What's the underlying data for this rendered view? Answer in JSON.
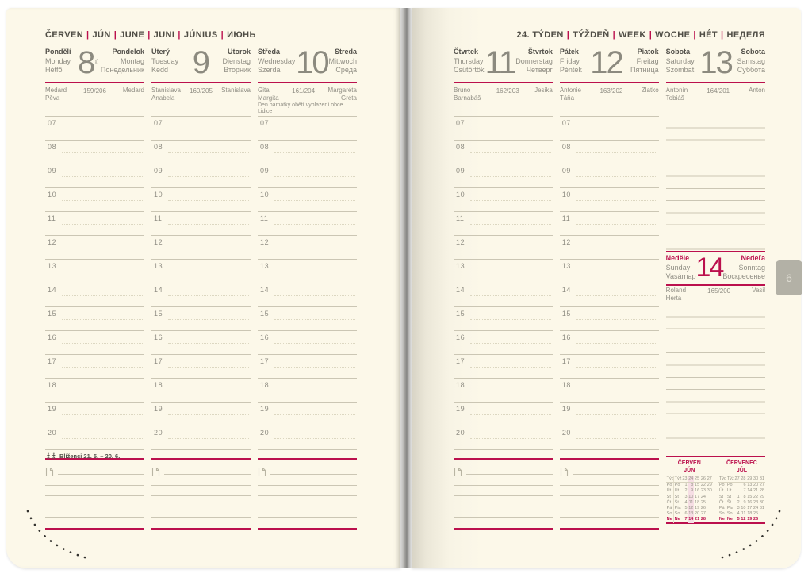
{
  "colors": {
    "accent": "#bb104d",
    "paper": "#fcf8e9",
    "line_gray": "#cbc6b4",
    "tab_gray": "#b3b1a6"
  },
  "icons": {
    "moon_phase": "☾",
    "gemini": "gemini-twins-pictogram",
    "note": "page-with-folded-corner"
  },
  "month_header_items": [
    "ČERVEN",
    "JÚN",
    "JUNE",
    "JUNI",
    "JÚNIUS",
    "ИЮНЬ"
  ],
  "week_header_items": [
    "24. TÝDEN",
    "TÝŽDEŇ",
    "WEEK",
    "WOCHE",
    "HÉT",
    "НЕДЕЛЯ"
  ],
  "hours": [
    "07",
    "08",
    "09",
    "10",
    "11",
    "12",
    "13",
    "14",
    "15",
    "16",
    "17",
    "18",
    "19",
    "20"
  ],
  "zodiac": {
    "label": "Blíženci 21. 5. – 20. 6."
  },
  "tab_label": "6",
  "days_left": [
    {
      "number": "8",
      "moon": "☾",
      "names_left": [
        "Pondělí",
        "Monday",
        "Hétfő"
      ],
      "names_right": [
        "Pondelok",
        "Montag",
        "Понедельник"
      ],
      "nameday_left": [
        "Medard",
        "Pěva"
      ],
      "day_of_year": "159/206",
      "nameday_right": [
        "Medard"
      ]
    },
    {
      "number": "9",
      "names_left": [
        "Úterý",
        "Tuesday",
        "Kedd"
      ],
      "names_right": [
        "Utorok",
        "Dienstag",
        "Вторник"
      ],
      "nameday_left": [
        "Stanislava",
        "Anabela"
      ],
      "day_of_year": "160/205",
      "nameday_right": [
        "Stanislava"
      ]
    },
    {
      "number": "10",
      "names_left": [
        "Středa",
        "Wednesday",
        "Szerda"
      ],
      "names_right": [
        "Streda",
        "Mittwoch",
        "Среда"
      ],
      "nameday_left": [
        "Gita",
        "Margita"
      ],
      "day_of_year": "161/204",
      "nameday_right": [
        "Margaréta",
        "Gréta"
      ],
      "note": "Den památky obětí vyhlazení obce Lidice"
    }
  ],
  "days_right": [
    {
      "number": "11",
      "names_left": [
        "Čtvrtek",
        "Thursday",
        "Csütörtök"
      ],
      "names_right": [
        "Štvrtok",
        "Donnerstag",
        "Четверг"
      ],
      "nameday_left": [
        "Bruno",
        "Barnabáš"
      ],
      "day_of_year": "162/203",
      "nameday_right": [
        "Jesika"
      ]
    },
    {
      "number": "12",
      "names_left": [
        "Pátek",
        "Friday",
        "Péntek"
      ],
      "names_right": [
        "Piatok",
        "Freitag",
        "Пятница"
      ],
      "nameday_left": [
        "Antonie",
        "Táňa"
      ],
      "day_of_year": "163/202",
      "nameday_right": [
        "Zlatko"
      ]
    },
    {
      "number": "13",
      "names_left": [
        "Sobota",
        "Saturday",
        "Szombat"
      ],
      "names_right": [
        "Sobota",
        "Samstag",
        "Суббота"
      ],
      "nameday_left": [
        "Antonín",
        "Tobiáš"
      ],
      "day_of_year": "164/201",
      "nameday_right": [
        "Anton"
      ]
    }
  ],
  "sunday": {
    "number": "14",
    "names_left": [
      "Neděle",
      "Sunday",
      "Vasárnap"
    ],
    "names_right": [
      "Nedeľa",
      "Sonntag",
      "Воскресенье"
    ],
    "nameday_left": [
      "Roland",
      "Herta"
    ],
    "day_of_year": "165/200",
    "nameday_right": [
      "Vasil"
    ]
  },
  "mini_calendars": [
    {
      "title": [
        "ČERVEN",
        "JÚN"
      ],
      "week_label": [
        "Týd",
        "Týž"
      ],
      "week_numbers": [
        "23",
        "24",
        "25",
        "26",
        "27"
      ],
      "highlight_col": 1,
      "rows": [
        {
          "labels": [
            "Po",
            "Po"
          ],
          "vals": [
            "1",
            "8",
            "15",
            "22",
            "29"
          ]
        },
        {
          "labels": [
            "Út",
            "Ut"
          ],
          "vals": [
            "2",
            "9",
            "16",
            "23",
            "30"
          ]
        },
        {
          "labels": [
            "St",
            "St"
          ],
          "vals": [
            "3",
            "10",
            "17",
            "24",
            ""
          ]
        },
        {
          "labels": [
            "Čt",
            "Št"
          ],
          "vals": [
            "4",
            "11",
            "18",
            "25",
            ""
          ]
        },
        {
          "labels": [
            "Pá",
            "Pia"
          ],
          "vals": [
            "5",
            "12",
            "19",
            "26",
            ""
          ]
        },
        {
          "labels": [
            "So",
            "So"
          ],
          "vals": [
            "6",
            "13",
            "20",
            "27",
            ""
          ]
        },
        {
          "labels": [
            "Ne",
            "Ne"
          ],
          "vals": [
            "7",
            "14",
            "21",
            "28",
            ""
          ],
          "red": true
        }
      ]
    },
    {
      "title": [
        "ČERVENEC",
        "JÚL"
      ],
      "week_label": [
        "Týd",
        "Týž"
      ],
      "week_numbers": [
        "27",
        "28",
        "29",
        "30",
        "31"
      ],
      "highlight_col": null,
      "rows": [
        {
          "labels": [
            "Po",
            "Po"
          ],
          "vals": [
            "",
            "6",
            "13",
            "20",
            "27"
          ]
        },
        {
          "labels": [
            "Út",
            "Ut"
          ],
          "vals": [
            "",
            "7",
            "14",
            "21",
            "28"
          ]
        },
        {
          "labels": [
            "St",
            "St"
          ],
          "vals": [
            "1",
            "8",
            "15",
            "22",
            "29"
          ]
        },
        {
          "labels": [
            "Čt",
            "Št"
          ],
          "vals": [
            "2",
            "9",
            "16",
            "23",
            "30"
          ]
        },
        {
          "labels": [
            "Pá",
            "Pia"
          ],
          "vals": [
            "3",
            "10",
            "17",
            "24",
            "31"
          ]
        },
        {
          "labels": [
            "So",
            "So"
          ],
          "vals": [
            "4",
            "11",
            "18",
            "25",
            ""
          ]
        },
        {
          "labels": [
            "Ne",
            "Ne"
          ],
          "vals": [
            "5",
            "12",
            "19",
            "26",
            ""
          ],
          "red": true
        }
      ]
    }
  ]
}
